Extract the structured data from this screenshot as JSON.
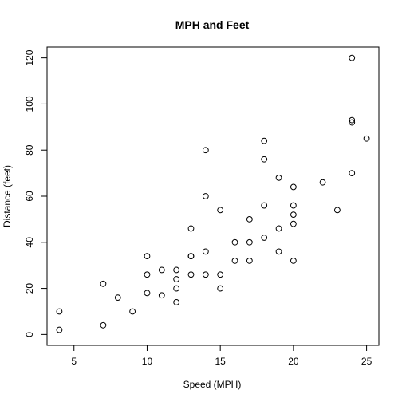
{
  "chart_data": {
    "type": "scatter",
    "title": "MPH and Feet",
    "xlabel": "Speed (MPH)",
    "ylabel": "Distance (feet)",
    "xlim": [
      3.16,
      25.84
    ],
    "ylim": [
      -4.72,
      124.72
    ],
    "xticks": [
      5,
      10,
      15,
      20,
      25
    ],
    "yticks": [
      0,
      20,
      40,
      60,
      80,
      100,
      120
    ],
    "grid": false,
    "marker": "open-circle",
    "point_color": "#000000",
    "points": [
      [
        4,
        2
      ],
      [
        4,
        10
      ],
      [
        7,
        4
      ],
      [
        7,
        22
      ],
      [
        8,
        16
      ],
      [
        9,
        10
      ],
      [
        10,
        18
      ],
      [
        10,
        26
      ],
      [
        10,
        34
      ],
      [
        11,
        17
      ],
      [
        11,
        28
      ],
      [
        12,
        14
      ],
      [
        12,
        20
      ],
      [
        12,
        24
      ],
      [
        12,
        28
      ],
      [
        13,
        26
      ],
      [
        13,
        34
      ],
      [
        13,
        34
      ],
      [
        13,
        46
      ],
      [
        14,
        26
      ],
      [
        14,
        36
      ],
      [
        14,
        60
      ],
      [
        14,
        80
      ],
      [
        15,
        20
      ],
      [
        15,
        26
      ],
      [
        15,
        54
      ],
      [
        16,
        32
      ],
      [
        16,
        40
      ],
      [
        17,
        32
      ],
      [
        17,
        40
      ],
      [
        17,
        50
      ],
      [
        18,
        42
      ],
      [
        18,
        56
      ],
      [
        18,
        76
      ],
      [
        18,
        84
      ],
      [
        19,
        36
      ],
      [
        19,
        46
      ],
      [
        19,
        68
      ],
      [
        20,
        32
      ],
      [
        20,
        48
      ],
      [
        20,
        52
      ],
      [
        20,
        56
      ],
      [
        20,
        64
      ],
      [
        22,
        66
      ],
      [
        23,
        54
      ],
      [
        24,
        70
      ],
      [
        24,
        92
      ],
      [
        24,
        93
      ],
      [
        24,
        120
      ],
      [
        25,
        85
      ]
    ]
  }
}
